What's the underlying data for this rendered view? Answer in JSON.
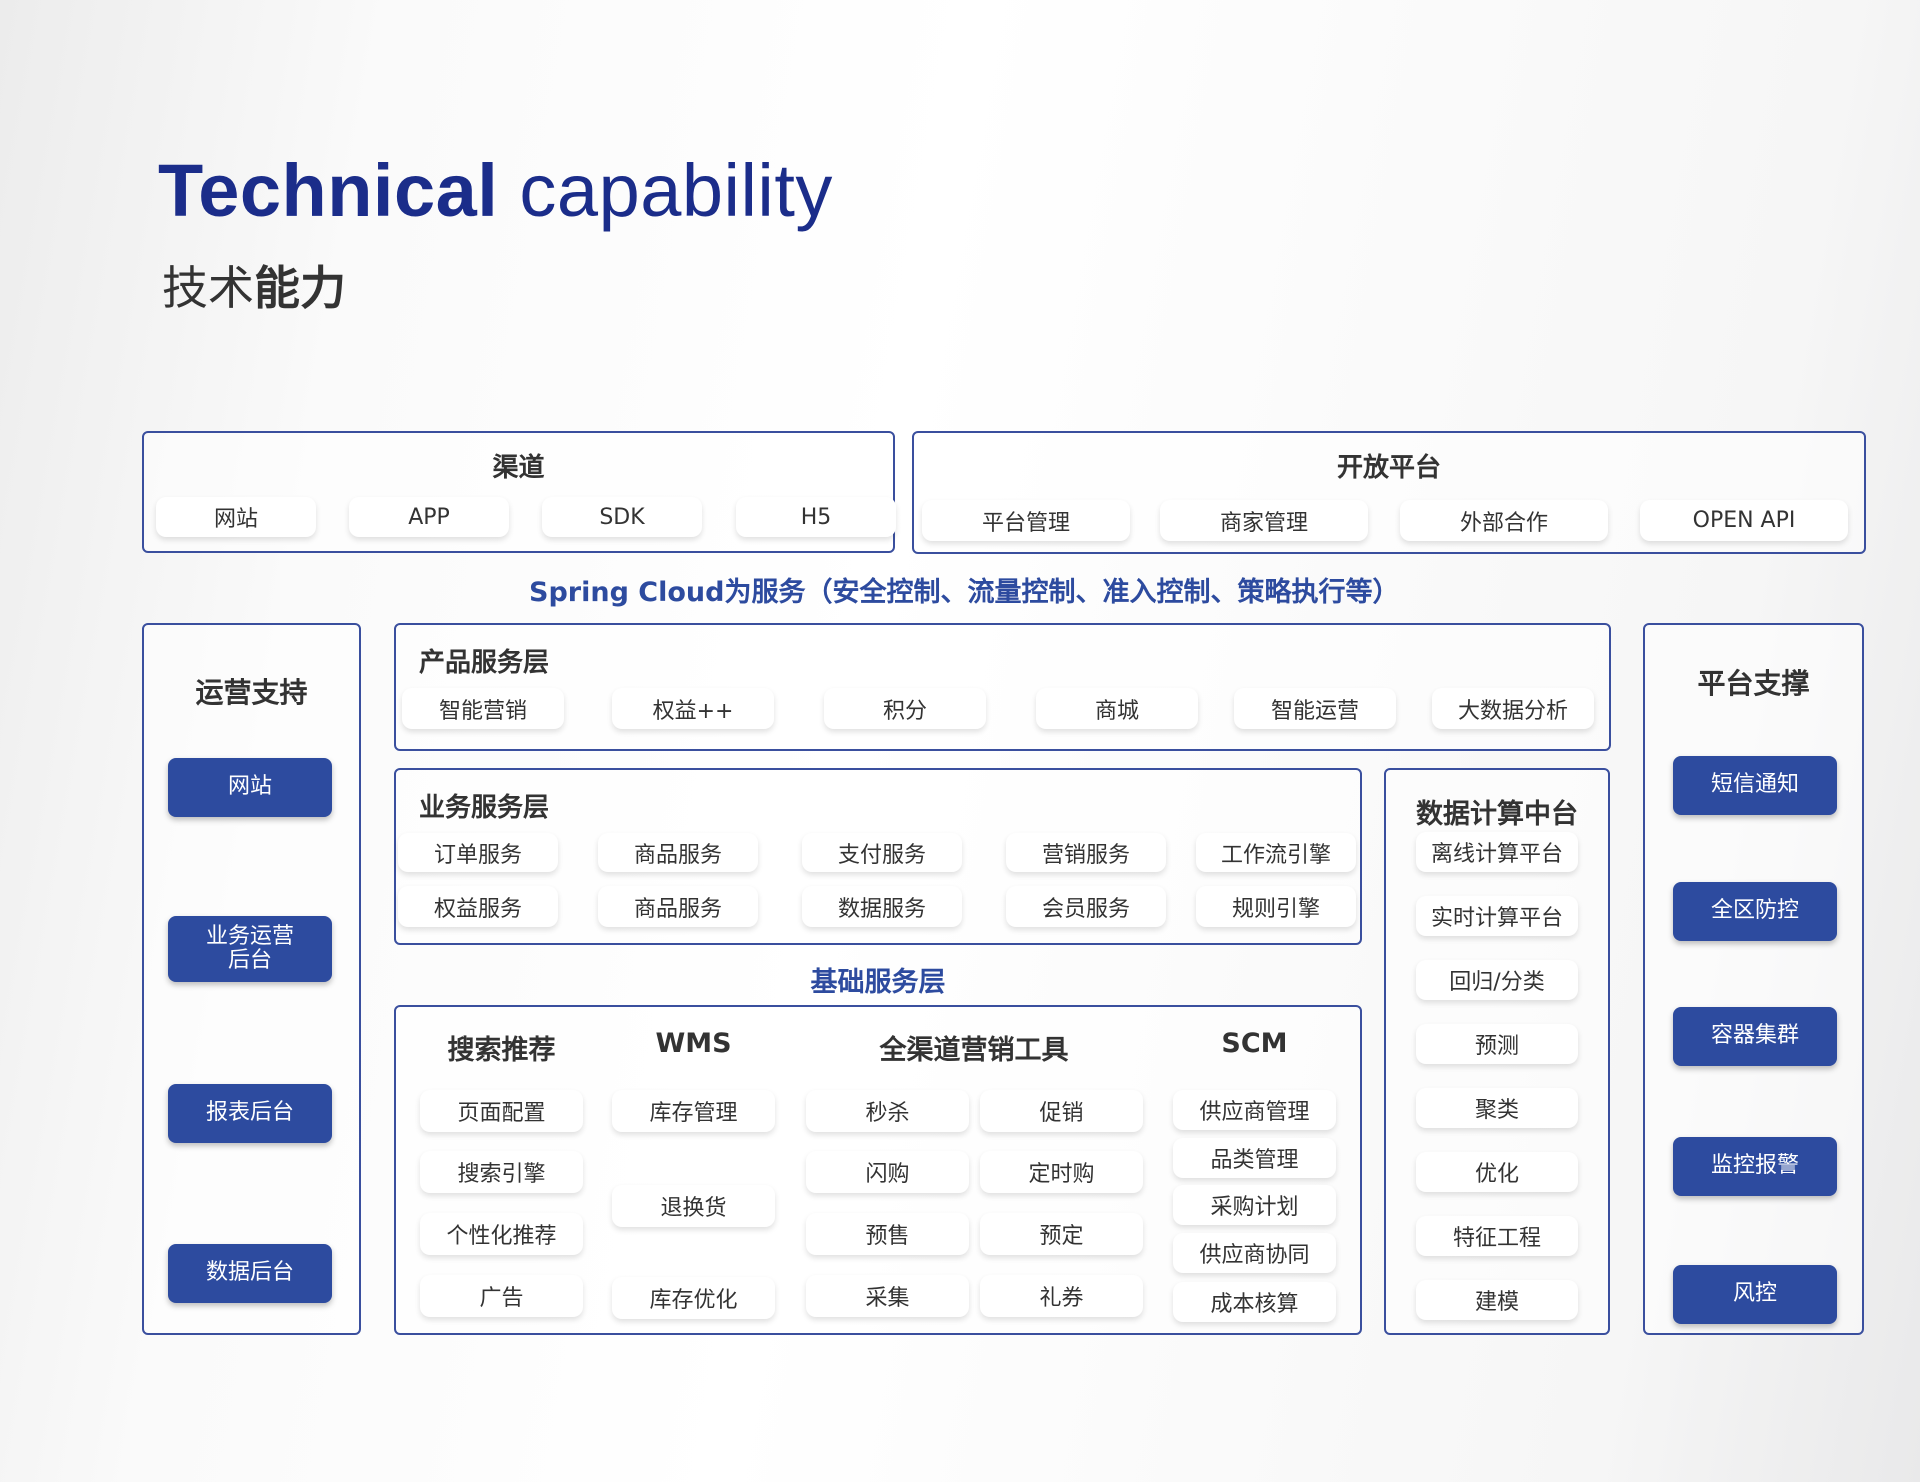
{
  "header": {
    "title_bold": "Technical",
    "title_light": "capability",
    "subtitle_light": "技术",
    "subtitle_bold": "能力"
  },
  "channel": {
    "title": "渠道",
    "items": [
      "网站",
      "APP",
      "SDK",
      "H5"
    ]
  },
  "open_platform": {
    "title": "开放平台",
    "items": [
      "平台管理",
      "商家管理",
      "外部合作",
      "OPEN API"
    ]
  },
  "spring_cloud": "Spring Cloud为服务（安全控制、流量控制、准入控制、策略执行等）",
  "ops_support": {
    "title": "运营支持",
    "items": [
      "网站",
      "业务运营\n后台",
      "报表后台",
      "数据后台"
    ]
  },
  "product_layer": {
    "title": "产品服务层",
    "items": [
      "智能营销",
      "权益++",
      "积分",
      "商城",
      "智能运营",
      "大数据分析"
    ]
  },
  "business_layer": {
    "title": "业务服务层",
    "items": [
      "订单服务",
      "商品服务",
      "支付服务",
      "营销服务",
      "工作流引擎",
      "权益服务",
      "商品服务",
      "数据服务",
      "会员服务",
      "规则引擎"
    ]
  },
  "base_layer": {
    "title": "基础服务层",
    "search": {
      "title": "搜索推荐",
      "items": [
        "页面配置",
        "搜索引擎",
        "个性化推荐",
        "广告"
      ]
    },
    "wms": {
      "title": "WMS",
      "items": [
        "库存管理",
        "退换货",
        "库存优化"
      ]
    },
    "marketing": {
      "title": "全渠道营销工具",
      "items": [
        "秒杀",
        "促销",
        "闪购",
        "定时购",
        "预售",
        "预定",
        "采集",
        "礼券"
      ]
    },
    "scm": {
      "title": "SCM",
      "items": [
        "供应商管理",
        "品类管理",
        "采购计划",
        "供应商协同",
        "成本核算"
      ]
    }
  },
  "data_platform": {
    "title": "数据计算中台",
    "items": [
      "离线计算平台",
      "实时计算平台",
      "回归/分类",
      "预测",
      "聚类",
      "优化",
      "特征工程",
      "建模"
    ]
  },
  "platform_support": {
    "title": "平台支撑",
    "items": [
      "短信通知",
      "全区防控",
      "容器集群",
      "监控报警",
      "风控"
    ]
  },
  "colors": {
    "accent": "#2d4b9f",
    "title": "#1b2d8a",
    "border": "#3a4f9e"
  }
}
